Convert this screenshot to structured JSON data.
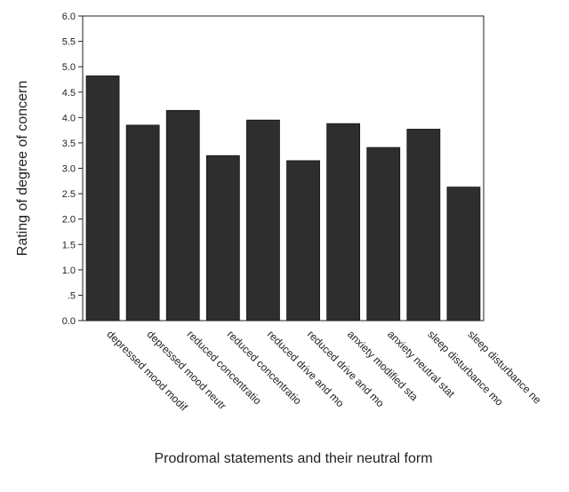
{
  "chart_data": {
    "type": "bar",
    "categories": [
      "depressed mood modif",
      "depressed mood neutr",
      "reduced concentratio",
      "reduced concentratio",
      "reduced drive and mo",
      "reduced drive and mo",
      "anxiety modified sta",
      "anxiety neutral stat",
      "sleep disturbance mo",
      "sleep disturbance ne"
    ],
    "values": [
      4.82,
      3.85,
      4.14,
      3.25,
      3.95,
      3.15,
      3.88,
      3.41,
      3.77,
      2.63
    ],
    "title": "",
    "xlabel": "Prodromal statements and their neutral form",
    "ylabel": "Rating of degree of concern",
    "ylim": [
      0,
      6
    ],
    "yticks": [
      "0.0",
      ".5",
      "1.0",
      "1.5",
      "2.0",
      "2.5",
      "3.0",
      "3.5",
      "4.0",
      "4.5",
      "5.0",
      "5.5",
      "6.0"
    ],
    "grid": false,
    "legend": "none",
    "bar_color": "#2e2e2e"
  }
}
